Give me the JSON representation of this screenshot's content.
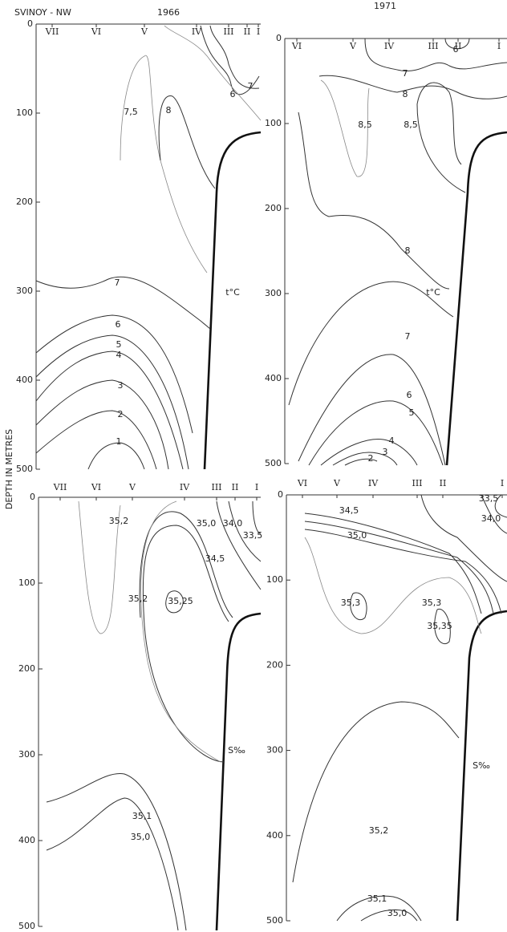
{
  "header": {
    "station": "SVINOY - NW",
    "y_axis_label": "DEPTH IN METRES"
  },
  "panels": [
    {
      "year": "1966",
      "parameter": "t°C",
      "stations": [
        "VII",
        "VI",
        "V",
        "IV",
        "III",
        "II",
        "I"
      ],
      "depth_ticks": [
        0,
        100,
        200,
        300,
        400,
        500
      ],
      "contour_labels": [
        "6",
        "7",
        "7,5",
        "8",
        "7",
        "6",
        "5",
        "4",
        "3",
        "2",
        "1"
      ]
    },
    {
      "year": "1971",
      "parameter": "t°C",
      "stations": [
        "VI",
        "V",
        "IV",
        "III",
        "II",
        "I"
      ],
      "depth_ticks": [
        0,
        100,
        200,
        300,
        400,
        500
      ],
      "contour_labels": [
        "6",
        "7",
        "8",
        "8,5",
        "8,5",
        "8",
        "7",
        "6",
        "5",
        "4",
        "3",
        "2"
      ]
    },
    {
      "parameter": "S‰",
      "stations": [
        "VII",
        "VI",
        "V",
        "IV",
        "III",
        "II",
        "I"
      ],
      "depth_ticks": [
        0,
        100,
        200,
        300,
        400,
        500
      ],
      "contour_labels": [
        "35,2",
        "35,0",
        "34,0",
        "33,5",
        "34,5",
        "35,2",
        "35,25",
        "35,1",
        "35,0"
      ]
    },
    {
      "parameter": "S‰",
      "stations": [
        "VI",
        "V",
        "IV",
        "III",
        "II",
        "I"
      ],
      "depth_ticks": [
        0,
        100,
        200,
        300,
        400,
        500
      ],
      "contour_labels": [
        "34,5",
        "35,0",
        "33,5",
        "34,0",
        "35,3",
        "35,3",
        "35,35",
        "35,2",
        "35,1",
        "35,0"
      ]
    }
  ]
}
